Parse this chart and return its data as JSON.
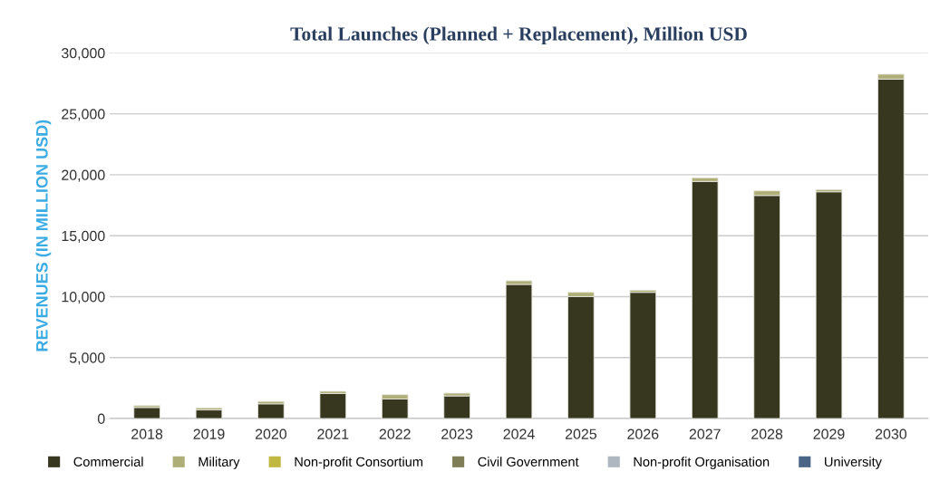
{
  "chart_data": {
    "type": "bar",
    "title": "Total Launches (Planned + Replacement), Million USD",
    "ylabel": "REVENUES (IN MILLION USD)",
    "categories": [
      "2018",
      "2019",
      "2020",
      "2021",
      "2022",
      "2023",
      "2024",
      "2025",
      "2026",
      "2027",
      "2028",
      "2029",
      "2030"
    ],
    "stacked": true,
    "series": [
      {
        "name": "Commercial",
        "color": "#373720",
        "values": [
          900,
          700,
          1200,
          2050,
          1600,
          1850,
          11000,
          10000,
          10350,
          19450,
          18300,
          18600,
          27850
        ]
      },
      {
        "name": "Military",
        "color": "#aeae78",
        "values": [
          150,
          170,
          200,
          180,
          350,
          230,
          300,
          350,
          180,
          300,
          380,
          180,
          400
        ]
      },
      {
        "name": "Non-profit Consortium",
        "color": "#c0b840",
        "values": [
          null,
          null,
          null,
          null,
          null,
          null,
          null,
          null,
          null,
          null,
          null,
          null,
          null
        ]
      },
      {
        "name": "Civil Government",
        "color": "#7f7d57",
        "values": [
          null,
          null,
          null,
          null,
          null,
          null,
          null,
          null,
          null,
          null,
          null,
          null,
          null
        ]
      },
      {
        "name": "Non-profit Organisation",
        "color": "#aeb6bf",
        "values": [
          null,
          null,
          null,
          null,
          null,
          null,
          null,
          null,
          null,
          null,
          null,
          null,
          null
        ]
      },
      {
        "name": "University",
        "color": "#4a6585",
        "values": [
          null,
          null,
          null,
          null,
          null,
          null,
          null,
          null,
          null,
          null,
          null,
          null,
          null
        ]
      }
    ],
    "ylim": [
      0,
      30000
    ],
    "yticks": [
      {
        "value": 0,
        "label": "0"
      },
      {
        "value": 5000,
        "label": "5,000"
      },
      {
        "value": 10000,
        "label": "10,000"
      },
      {
        "value": 15000,
        "label": "15,000"
      },
      {
        "value": 20000,
        "label": "20,000"
      },
      {
        "value": 25000,
        "label": "25,000"
      },
      {
        "value": 30000,
        "label": "30,000"
      }
    ],
    "grid": "y",
    "legend": "bottom"
  }
}
